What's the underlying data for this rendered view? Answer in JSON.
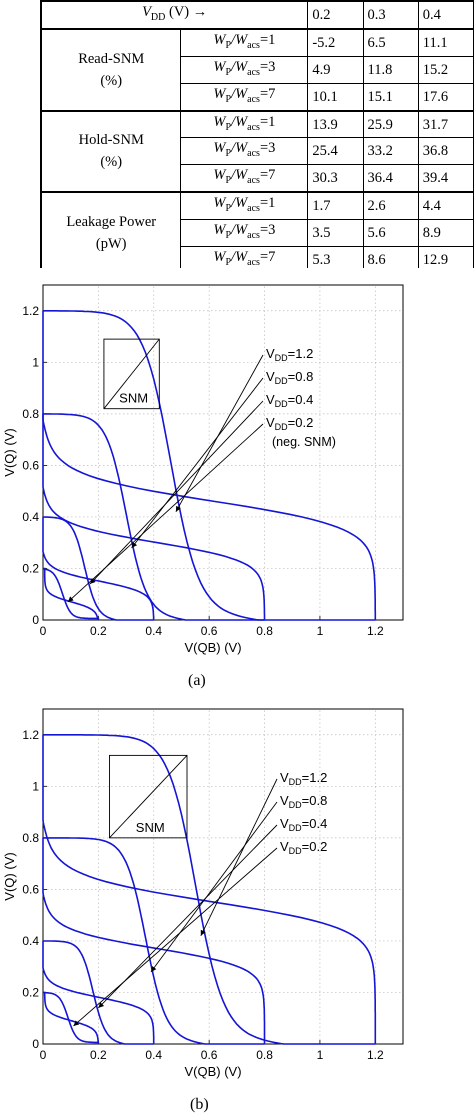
{
  "table": {
    "header_label": "V",
    "header_sub": "DD",
    "header_unit": " (V) →",
    "vdd_values": [
      "0.2",
      "0.3",
      "0.4"
    ],
    "w_prefix": "W",
    "w_sub1": "P",
    "w_mid": "/W",
    "w_sub2": "acs",
    "groups": [
      {
        "line1": "Read-SNM",
        "line2": "(%)",
        "rows": [
          {
            "ratio": "=1",
            "values": [
              "-5.2",
              "6.5",
              "11.1"
            ]
          },
          {
            "ratio": "=3",
            "values": [
              "4.9",
              "11.8",
              "15.2"
            ]
          },
          {
            "ratio": "=7",
            "values": [
              "10.1",
              "15.1",
              "17.6"
            ]
          }
        ]
      },
      {
        "line1": "Hold-SNM",
        "line2": "(%)",
        "rows": [
          {
            "ratio": "=1",
            "values": [
              "13.9",
              "25.9",
              "31.7"
            ]
          },
          {
            "ratio": "=3",
            "values": [
              "25.4",
              "33.2",
              "36.8"
            ]
          },
          {
            "ratio": "=7",
            "values": [
              "30.3",
              "36.4",
              "39.4"
            ]
          }
        ]
      },
      {
        "line1": "Leakage Power",
        "line2": "(pW)",
        "rows": [
          {
            "ratio": "=1",
            "values": [
              "1.7",
              "2.6",
              "4.4"
            ]
          },
          {
            "ratio": "=3",
            "values": [
              "3.5",
              "5.6",
              "8.9"
            ]
          },
          {
            "ratio": "=7",
            "values": [
              "5.3",
              "8.6",
              "12.9"
            ]
          }
        ]
      }
    ]
  },
  "figures": {
    "caption_a": "(a)",
    "caption_b": "(b)",
    "xlabel": "V(QB) (V)",
    "ylabel": "V(Q) (V)",
    "xticks": [
      "0",
      "0.2",
      "0.4",
      "0.6",
      "0.8",
      "1",
      "1.2"
    ],
    "yticks": [
      "0",
      "0.2",
      "0.4",
      "0.6",
      "0.8",
      "1",
      "1.2"
    ],
    "snm_label": "SNM",
    "vdd_annot_prefix": "V",
    "vdd_annot_sub": "DD",
    "annot_a": [
      "=1.2",
      "=0.8",
      "=0.4",
      "=0.2"
    ],
    "annot_a_extra": "(neg. SNM)",
    "annot_b": [
      "=1.2",
      "=0.8",
      "=0.4",
      "=0.2"
    ],
    "line_color": "#1515d6",
    "grid": true
  },
  "chart_data": [
    {
      "type": "line",
      "title": "",
      "xlabel": "V(QB) (V)",
      "ylabel": "V(Q) (V)",
      "xlim": [
        0,
        1.3
      ],
      "ylim": [
        0,
        1.3
      ],
      "vdd": [
        1.2,
        0.8,
        0.4,
        0.2
      ],
      "switch_points": {
        "forward": [
          0.46,
          0.3,
          0.15,
          0.07
        ],
        "reverse": [
          0.46,
          0.3,
          0.15,
          0.07
        ]
      },
      "annotations": [
        "VDD=1.2",
        "VDD=0.8",
        "VDD=0.4",
        "VDD=0.2 (neg. SNM)"
      ]
    },
    {
      "type": "line",
      "title": "",
      "xlabel": "V(QB) (V)",
      "ylabel": "V(Q) (V)",
      "xlim": [
        0,
        1.3
      ],
      "ylim": [
        0,
        1.3
      ],
      "vdd": [
        1.2,
        0.8,
        0.4,
        0.2
      ],
      "switch_points": {
        "forward": [
          0.55,
          0.37,
          0.18,
          0.09
        ],
        "reverse": [
          0.55,
          0.37,
          0.18,
          0.09
        ]
      },
      "annotations": [
        "VDD=1.2",
        "VDD=0.8",
        "VDD=0.4",
        "VDD=0.2"
      ]
    }
  ]
}
